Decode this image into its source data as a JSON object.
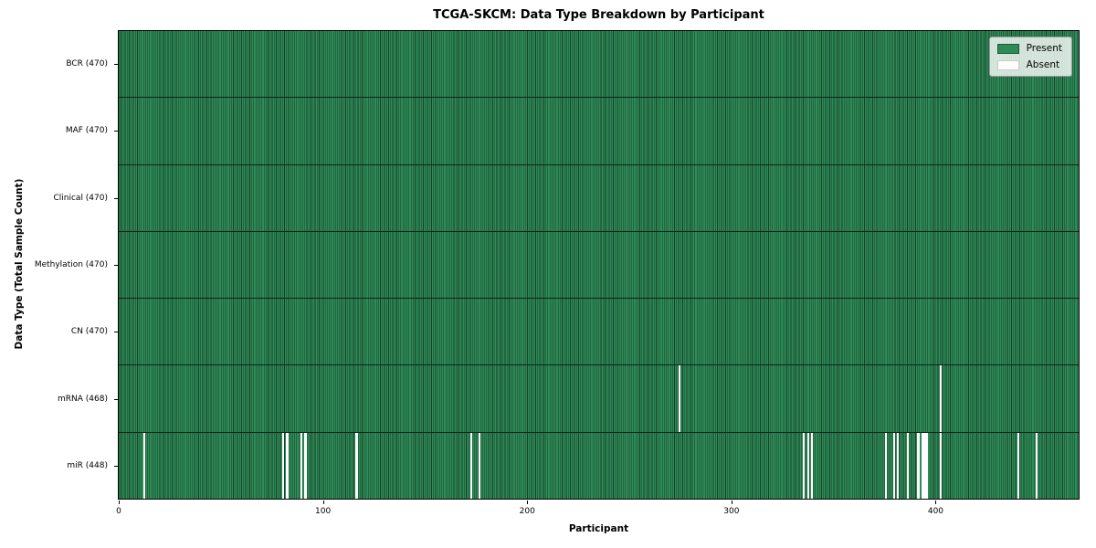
{
  "chart_data": {
    "type": "heatmap",
    "title": "TCGA-SKCM: Data Type Breakdown by Participant",
    "xlabel": "Participant",
    "ylabel": "Data Type (Total Sample Count)",
    "xlim": [
      0,
      470
    ],
    "n_participants": 470,
    "x_ticks": [
      0,
      100,
      200,
      300,
      400
    ],
    "grid": false,
    "legend": {
      "position": "upper right",
      "entries": [
        {
          "label": "Present",
          "color": "#2e8b57"
        },
        {
          "label": "Absent",
          "color": "#ffffff"
        }
      ]
    },
    "rows": [
      {
        "label": "BCR (470)",
        "total": 470,
        "absent_participants": []
      },
      {
        "label": "MAF (470)",
        "total": 470,
        "absent_participants": []
      },
      {
        "label": "Clinical (470)",
        "total": 470,
        "absent_participants": []
      },
      {
        "label": "Methylation (470)",
        "total": 470,
        "absent_participants": []
      },
      {
        "label": "CN (470)",
        "total": 470,
        "absent_participants": []
      },
      {
        "label": "mRNA (468)",
        "total": 468,
        "absent_participants": [
          274,
          402
        ]
      },
      {
        "label": "miR (448)",
        "total": 448,
        "absent_participants": [
          12,
          80,
          82,
          89,
          91,
          116,
          172,
          176,
          335,
          337,
          339,
          375,
          379,
          381,
          386,
          391,
          393,
          394,
          395,
          402,
          440,
          449
        ]
      }
    ],
    "colors": {
      "present": "#2e8b57",
      "cell_edge": "#17402a",
      "absent": "#ffffff",
      "row_border": "#102317",
      "plot_border": "#000000"
    }
  }
}
